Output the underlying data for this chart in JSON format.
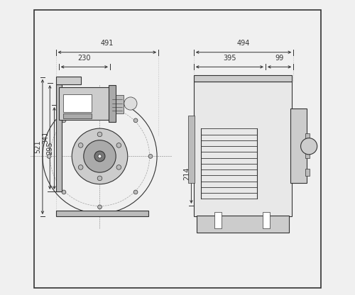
{
  "bg_color": "#f0f0f0",
  "border_color": "#555555",
  "line_color": "#333333",
  "dim_color": "#444444",
  "fill_light": "#d8d8d8",
  "fill_medium": "#bbbbbb",
  "fill_dark": "#888888",
  "white": "#ffffff",
  "dims_left": {
    "491": [
      0.17,
      0.54,
      "491"
    ],
    "230": [
      0.17,
      0.48,
      "230"
    ],
    "521": [
      0.025,
      0.72,
      "521"
    ],
    "341": [
      0.055,
      0.6,
      "341"
    ],
    "295": [
      0.075,
      0.56,
      "295"
    ]
  },
  "dims_right": {
    "494": [
      0.575,
      0.54,
      "494"
    ],
    "395": [
      0.575,
      0.48,
      "395"
    ],
    "99": [
      0.88,
      0.48,
      "99"
    ],
    "214": [
      0.555,
      0.65,
      "214"
    ]
  }
}
